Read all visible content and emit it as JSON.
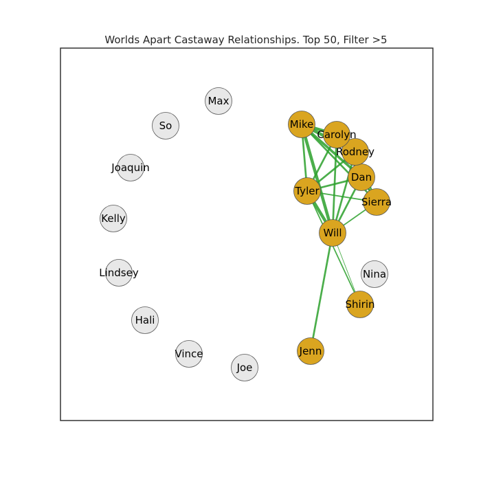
{
  "title": "Worlds Apart Castaway Relationships. Top 50, Filter >5",
  "colors": {
    "active_node": "#DAA520",
    "inactive_node": "#E8E8E8",
    "edge": "#2CA02C",
    "frame": "#333333"
  },
  "nodes": [
    {
      "id": "Max",
      "label": "Max",
      "active": false
    },
    {
      "id": "So",
      "label": "So",
      "active": false
    },
    {
      "id": "Joaquin",
      "label": "Joaquin",
      "active": false
    },
    {
      "id": "Kelly",
      "label": "Kelly",
      "active": false
    },
    {
      "id": "Lindsey",
      "label": "Lindsey",
      "active": false
    },
    {
      "id": "Hali",
      "label": "Hali",
      "active": false
    },
    {
      "id": "Vince",
      "label": "Vince",
      "active": false
    },
    {
      "id": "Joe",
      "label": "Joe",
      "active": false
    },
    {
      "id": "Jenn",
      "label": "Jenn",
      "active": true
    },
    {
      "id": "Shirin",
      "label": "Shirin",
      "active": true
    },
    {
      "id": "Nina",
      "label": "Nina",
      "active": false
    },
    {
      "id": "Will",
      "label": "Will",
      "active": true
    },
    {
      "id": "Sierra",
      "label": "Sierra",
      "active": true
    },
    {
      "id": "Tyler",
      "label": "Tyler",
      "active": true
    },
    {
      "id": "Dan",
      "label": "Dan",
      "active": true
    },
    {
      "id": "Rodney",
      "label": "Rodney",
      "active": true
    },
    {
      "id": "Carolyn",
      "label": "Carolyn",
      "active": true
    },
    {
      "id": "Mike",
      "label": "Mike",
      "active": true
    }
  ],
  "edges": [
    {
      "source": "Mike",
      "target": "Carolyn",
      "weight": 5
    },
    {
      "source": "Mike",
      "target": "Rodney",
      "weight": 5
    },
    {
      "source": "Mike",
      "target": "Dan",
      "weight": 4
    },
    {
      "source": "Mike",
      "target": "Sierra",
      "weight": 3
    },
    {
      "source": "Mike",
      "target": "Tyler",
      "weight": 3
    },
    {
      "source": "Mike",
      "target": "Will",
      "weight": 5
    },
    {
      "source": "Carolyn",
      "target": "Rodney",
      "weight": 3
    },
    {
      "source": "Carolyn",
      "target": "Dan",
      "weight": 3
    },
    {
      "source": "Carolyn",
      "target": "Tyler",
      "weight": 3
    },
    {
      "source": "Carolyn",
      "target": "Will",
      "weight": 3
    },
    {
      "source": "Carolyn",
      "target": "Sierra",
      "weight": 2
    },
    {
      "source": "Rodney",
      "target": "Dan",
      "weight": 3
    },
    {
      "source": "Rodney",
      "target": "Tyler",
      "weight": 3
    },
    {
      "source": "Rodney",
      "target": "Will",
      "weight": 3
    },
    {
      "source": "Rodney",
      "target": "Sierra",
      "weight": 3
    },
    {
      "source": "Dan",
      "target": "Tyler",
      "weight": 3
    },
    {
      "source": "Dan",
      "target": "Will",
      "weight": 3
    },
    {
      "source": "Dan",
      "target": "Sierra",
      "weight": 3
    },
    {
      "source": "Tyler",
      "target": "Will",
      "weight": 5
    },
    {
      "source": "Tyler",
      "target": "Sierra",
      "weight": 2
    },
    {
      "source": "Tyler",
      "target": "Shirin",
      "weight": 2
    },
    {
      "source": "Sierra",
      "target": "Will",
      "weight": 2
    },
    {
      "source": "Will",
      "target": "Jenn",
      "weight": 3
    },
    {
      "source": "Will",
      "target": "Shirin",
      "weight": 1
    }
  ]
}
